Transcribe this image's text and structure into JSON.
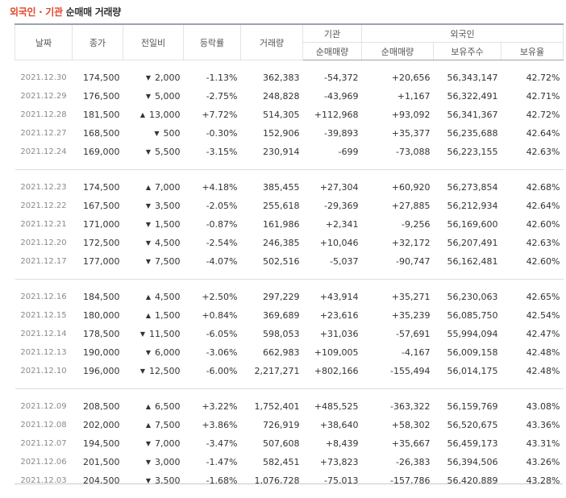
{
  "title": {
    "part1": "외국인 · 기관",
    "part2": "순매매 거래량"
  },
  "columns": {
    "date": "날짜",
    "close": "종가",
    "change": "전일비",
    "rate": "등락률",
    "volume": "거래량",
    "institution": "기관",
    "foreign": "외국인",
    "inst_net": "순매매량",
    "foreign_net": "순매매량",
    "foreign_shares": "보유주수",
    "foreign_ratio": "보유율"
  },
  "colors": {
    "up": "#d6141b",
    "down": "#1f5fcd",
    "title_accent": "#e2462c"
  },
  "groups": [
    [
      {
        "date": "2021.12.30",
        "close": "174,500",
        "dir": "down",
        "change": "2,000",
        "rate": "-1.13%",
        "volume": "362,383",
        "inst": "-54,372",
        "frgn": "+20,656",
        "shares": "56,343,147",
        "ratio": "42.72%"
      },
      {
        "date": "2021.12.29",
        "close": "176,500",
        "dir": "down",
        "change": "5,000",
        "rate": "-2.75%",
        "volume": "248,828",
        "inst": "-43,969",
        "frgn": "+1,167",
        "shares": "56,322,491",
        "ratio": "42.71%"
      },
      {
        "date": "2021.12.28",
        "close": "181,500",
        "dir": "up",
        "change": "13,000",
        "rate": "+7.72%",
        "volume": "514,305",
        "inst": "+112,968",
        "frgn": "+93,092",
        "shares": "56,341,367",
        "ratio": "42.72%"
      },
      {
        "date": "2021.12.27",
        "close": "168,500",
        "dir": "down",
        "change": "500",
        "rate": "-0.30%",
        "volume": "152,906",
        "inst": "-39,893",
        "frgn": "+35,377",
        "shares": "56,235,688",
        "ratio": "42.64%"
      },
      {
        "date": "2021.12.24",
        "close": "169,000",
        "dir": "down",
        "change": "5,500",
        "rate": "-3.15%",
        "volume": "230,914",
        "inst": "-699",
        "frgn": "-73,088",
        "shares": "56,223,155",
        "ratio": "42.63%"
      }
    ],
    [
      {
        "date": "2021.12.23",
        "close": "174,500",
        "dir": "up",
        "change": "7,000",
        "rate": "+4.18%",
        "volume": "385,455",
        "inst": "+27,304",
        "frgn": "+60,920",
        "shares": "56,273,854",
        "ratio": "42.68%"
      },
      {
        "date": "2021.12.22",
        "close": "167,500",
        "dir": "down",
        "change": "3,500",
        "rate": "-2.05%",
        "volume": "255,618",
        "inst": "-29,369",
        "frgn": "+27,885",
        "shares": "56,212,934",
        "ratio": "42.64%"
      },
      {
        "date": "2021.12.21",
        "close": "171,000",
        "dir": "down",
        "change": "1,500",
        "rate": "-0.87%",
        "volume": "161,986",
        "inst": "+2,341",
        "frgn": "-9,256",
        "shares": "56,169,600",
        "ratio": "42.60%"
      },
      {
        "date": "2021.12.20",
        "close": "172,500",
        "dir": "down",
        "change": "4,500",
        "rate": "-2.54%",
        "volume": "246,385",
        "inst": "+10,046",
        "frgn": "+32,172",
        "shares": "56,207,491",
        "ratio": "42.63%"
      },
      {
        "date": "2021.12.17",
        "close": "177,000",
        "dir": "down",
        "change": "7,500",
        "rate": "-4.07%",
        "volume": "502,516",
        "inst": "-5,037",
        "frgn": "-90,747",
        "shares": "56,162,481",
        "ratio": "42.60%"
      }
    ],
    [
      {
        "date": "2021.12.16",
        "close": "184,500",
        "dir": "up",
        "change": "4,500",
        "rate": "+2.50%",
        "volume": "297,229",
        "inst": "+43,914",
        "frgn": "+35,271",
        "shares": "56,230,063",
        "ratio": "42.65%"
      },
      {
        "date": "2021.12.15",
        "close": "180,000",
        "dir": "up",
        "change": "1,500",
        "rate": "+0.84%",
        "volume": "369,689",
        "inst": "+23,616",
        "frgn": "+35,239",
        "shares": "56,085,750",
        "ratio": "42.54%"
      },
      {
        "date": "2021.12.14",
        "close": "178,500",
        "dir": "down",
        "change": "11,500",
        "rate": "-6.05%",
        "volume": "598,053",
        "inst": "+31,036",
        "frgn": "-57,691",
        "shares": "55,994,094",
        "ratio": "42.47%"
      },
      {
        "date": "2021.12.13",
        "close": "190,000",
        "dir": "down",
        "change": "6,000",
        "rate": "-3.06%",
        "volume": "662,983",
        "inst": "+109,005",
        "frgn": "-4,167",
        "shares": "56,009,158",
        "ratio": "42.48%"
      },
      {
        "date": "2021.12.10",
        "close": "196,000",
        "dir": "down",
        "change": "12,500",
        "rate": "-6.00%",
        "volume": "2,217,271",
        "inst": "+802,166",
        "frgn": "-155,494",
        "shares": "56,014,175",
        "ratio": "42.48%"
      }
    ],
    [
      {
        "date": "2021.12.09",
        "close": "208,500",
        "dir": "up",
        "change": "6,500",
        "rate": "+3.22%",
        "volume": "1,752,401",
        "inst": "+485,525",
        "frgn": "-363,322",
        "shares": "56,159,769",
        "ratio": "43.08%"
      },
      {
        "date": "2021.12.08",
        "close": "202,000",
        "dir": "up",
        "change": "7,500",
        "rate": "+3.86%",
        "volume": "726,919",
        "inst": "+38,640",
        "frgn": "+58,302",
        "shares": "56,520,675",
        "ratio": "43.36%"
      },
      {
        "date": "2021.12.07",
        "close": "194,500",
        "dir": "down",
        "change": "7,000",
        "rate": "-3.47%",
        "volume": "507,608",
        "inst": "+8,439",
        "frgn": "+35,667",
        "shares": "56,459,173",
        "ratio": "43.31%"
      },
      {
        "date": "2021.12.06",
        "close": "201,500",
        "dir": "down",
        "change": "3,000",
        "rate": "-1.47%",
        "volume": "582,451",
        "inst": "+73,823",
        "frgn": "-26,383",
        "shares": "56,394,506",
        "ratio": "43.26%"
      },
      {
        "date": "2021.12.03",
        "close": "204,500",
        "dir": "down",
        "change": "3,500",
        "rate": "-1.68%",
        "volume": "1,076,728",
        "inst": "-75,013",
        "frgn": "-157,786",
        "shares": "56,420,889",
        "ratio": "43.28%"
      }
    ]
  ]
}
